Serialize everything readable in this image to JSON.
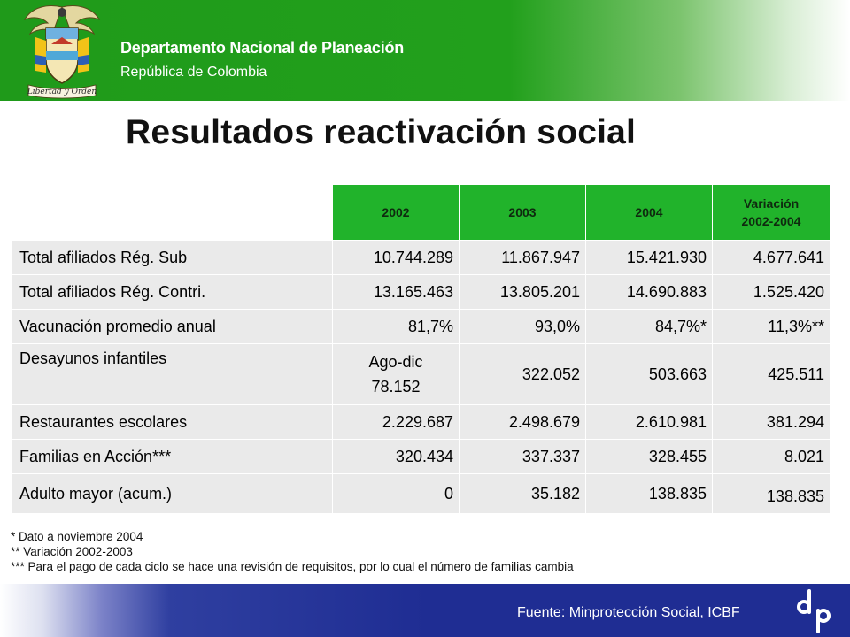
{
  "header": {
    "org_name": "Departamento Nacional de Planeación",
    "org_sub": "República de Colombia",
    "motto": "Libertad y Orden",
    "brand_color": "#22a01c"
  },
  "title": "Resultados reactivación social",
  "table": {
    "columns": [
      "2002",
      "2003",
      "2004",
      "Variación 2002-2004"
    ],
    "rows": [
      {
        "label": "Total afiliados Rég. Sub",
        "v2002": "10.744.289",
        "v2003": "11.867.947",
        "v2004": "15.421.930",
        "var": "4.677.641"
      },
      {
        "label": "Total afiliados Rég. Contri.",
        "v2002": "13.165.463",
        "v2003": "13.805.201",
        "v2004": "14.690.883",
        "var": "1.525.420"
      },
      {
        "label": "Vacunación promedio anual",
        "v2002": "81,7%",
        "v2003": "93,0%",
        "v2004": "84,7%*",
        "var": "11,3%**"
      },
      {
        "label": "Desayunos infantiles",
        "v2002_line1": "Ago-dic",
        "v2002_line2": "78.152",
        "v2003": "322.052",
        "v2004": "503.663",
        "var": "425.511"
      },
      {
        "label": "Restaurantes escolares",
        "v2002": "2.229.687",
        "v2003": "2.498.679",
        "v2004": "2.610.981",
        "var": "381.294"
      },
      {
        "label": "Familias en Acción***",
        "v2002": "320.434",
        "v2003": "337.337",
        "v2004": "328.455",
        "var": "8.021"
      },
      {
        "label": "Adulto mayor (acum.)",
        "v2002": "0",
        "v2003": "35.182",
        "v2004": "138.835",
        "var": "138.835"
      }
    ]
  },
  "notes": [
    "* Dato a noviembre 2004",
    "** Variación 2002-2003",
    "*** Para el pago de cada ciclo se hace una revisión de requisitos, por lo cual el número de familias cambia"
  ],
  "footer": {
    "source": "Fuente: Minprotección Social, ICBF",
    "bar_color": "#1f2d93"
  }
}
